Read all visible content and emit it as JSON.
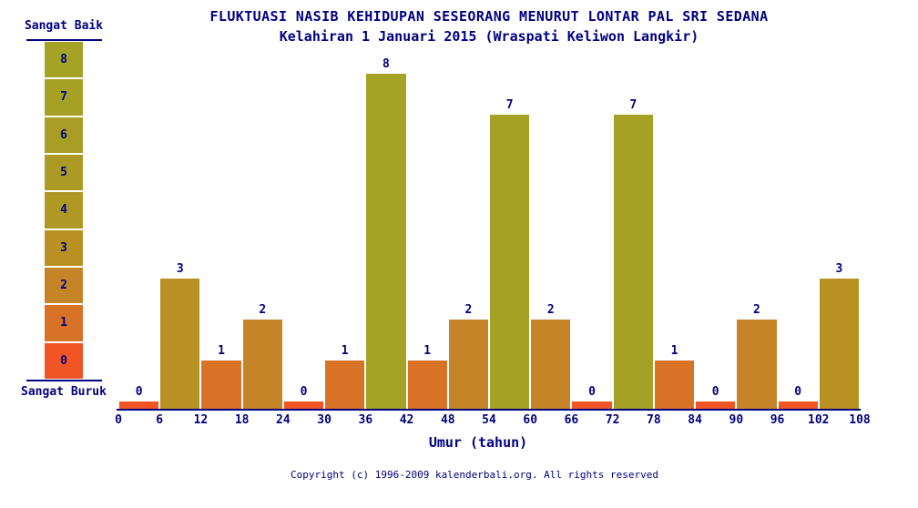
{
  "colors": {
    "text": "#000080",
    "background": "#ffffff",
    "scale_by_value": [
      "#F15525",
      "#D87226",
      "#C58427",
      "#B89122",
      "#AF9824",
      "#AB9B25",
      "#A89E25",
      "#A5A125",
      "#A4A326"
    ]
  },
  "header": {
    "title": "FLUKTUASI NASIB KEHIDUPAN SESEORANG MENURUT LONTAR PAL SRI SEDANA",
    "subtitle": "Kelahiran 1 Januari 2015 (Wraspati Keliwon Langkir)"
  },
  "legend": {
    "top_label": "Sangat Baik",
    "bottom_label": "Sangat Buruk",
    "levels": [
      8,
      7,
      6,
      5,
      4,
      3,
      2,
      1,
      0
    ]
  },
  "chart_data": {
    "type": "bar",
    "title": "FLUKTUASI NASIB KEHIDUPAN SESEORANG MENURUT LONTAR PAL SRI SEDANA",
    "subtitle": "Kelahiran 1 Januari 2015 (Wraspati Keliwon Langkir)",
    "xlabel": "Umur (tahun)",
    "ylabel": "",
    "ylim": [
      0,
      8
    ],
    "grid": false,
    "legend_position": "left",
    "x_ticks": [
      0,
      6,
      12,
      18,
      24,
      30,
      36,
      42,
      48,
      54,
      60,
      66,
      72,
      78,
      84,
      90,
      96,
      102,
      108
    ],
    "categories": [
      "0-6",
      "6-12",
      "12-18",
      "18-24",
      "24-30",
      "30-36",
      "36-42",
      "42-48",
      "48-54",
      "54-60",
      "60-66",
      "66-72",
      "72-78",
      "78-84",
      "84-90",
      "90-96",
      "96-102",
      "102-108"
    ],
    "values": [
      0,
      3,
      1,
      2,
      0,
      1,
      8,
      1,
      2,
      7,
      2,
      0,
      7,
      1,
      0,
      2,
      0,
      3
    ],
    "value_labels_shown": true,
    "color_mapping": "bar color indexed by value on scale_by_value (0=worst orange-red, 8=best olive-green)"
  },
  "footer": {
    "copyright": "Copyright (c) 1996-2009 kalenderbali.org. All rights reserved"
  }
}
